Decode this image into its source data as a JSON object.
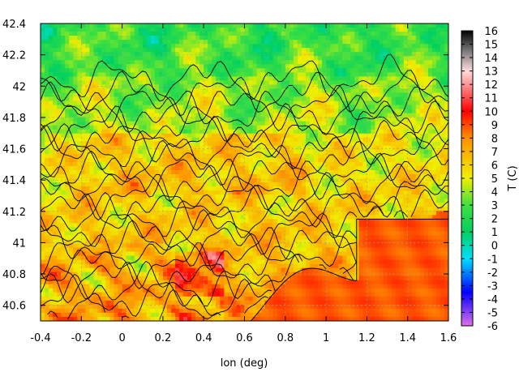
{
  "chart_data": {
    "type": "heatmap",
    "title": "",
    "xlabel": "lon (deg)",
    "ylabel": "",
    "colorbar_label": "T (C)",
    "xlim": [
      -0.4,
      1.6
    ],
    "ylim": [
      40.5,
      42.4
    ],
    "x_ticks": [
      "-0.4",
      "-0.2",
      "0",
      "0.2",
      "0.4",
      "0.6",
      "0.8",
      "1",
      "1.2",
      "1.4",
      "1.6"
    ],
    "y_ticks": [
      "40.6",
      "40.8",
      "41",
      "41.2",
      "41.4",
      "41.6",
      "41.8",
      "42",
      "42.2",
      "42.4"
    ],
    "colorbar_range": [
      -6,
      16
    ],
    "colorbar_ticks": [
      "-6",
      "-5",
      "-4",
      "-3",
      "-2",
      "-1",
      "0",
      "1",
      "2",
      "3",
      "4",
      "5",
      "6",
      "7",
      "8",
      "9",
      "10",
      "11",
      "12",
      "13",
      "14",
      "15",
      "16"
    ],
    "grid": true,
    "contours": true,
    "palette": [
      "#e070e8",
      "#0000ff",
      "#00e0ff",
      "#00d060",
      "#40e040",
      "#f0f000",
      "#ff9000",
      "#ff0000",
      "#ffffff",
      "#000000"
    ],
    "features": {
      "sea_temperature": 9,
      "sea_boundary_lon_at_north": 1.6,
      "description_regions": [
        {
          "lon": [
            1.2,
            1.6
          ],
          "lat": [
            40.5,
            41.15
          ],
          "temp": 9
        },
        {
          "lon": [
            0.6,
            1.2
          ],
          "lat": [
            40.5,
            40.95
          ],
          "temp": 9
        }
      ]
    }
  }
}
